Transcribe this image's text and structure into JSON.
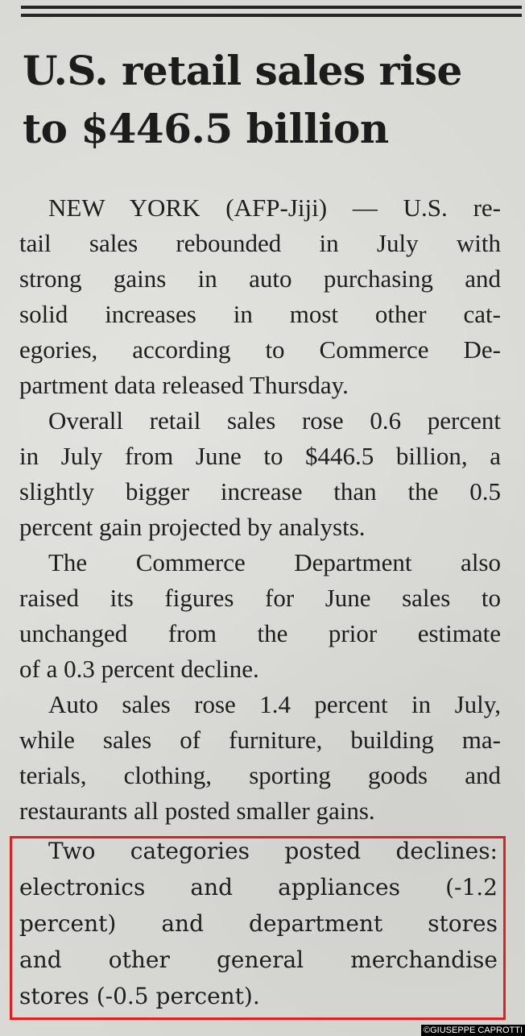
{
  "headline": [
    "U.S. retail sales rise",
    "to $446.5 billion"
  ],
  "paragraphs": [
    [
      "NEW YORK (AFP-Jiji) — U.S. re-",
      "tail sales rebounded in July with",
      "strong gains in auto purchasing and",
      "solid increases in most other cat-",
      "egories, according to Commerce De-",
      "partment data released Thursday."
    ],
    [
      "Overall retail sales rose 0.6 percent",
      "in July from June to $446.5 billion, a",
      "slightly bigger increase than the 0.5",
      "percent gain projected by analysts."
    ],
    [
      "The Commerce Department also",
      "raised its figures for June sales to",
      "unchanged from the prior estimate",
      "of a 0.3 percent decline."
    ],
    [
      "Auto sales rose 1.4 percent in July,",
      "while sales of furniture, building ma-",
      "terials, clothing, sporting goods and",
      "restaurants all posted smaller gains."
    ]
  ],
  "highlighted": [
    "Two categories posted declines:",
    "electronics and appliances (-1.2",
    "percent) and department stores",
    "and other general merchandise",
    "stores (-0.5 percent)."
  ],
  "credit": "©GIUSEPPE CAPROTTI",
  "colors": {
    "highlight_box": "#e02020"
  }
}
